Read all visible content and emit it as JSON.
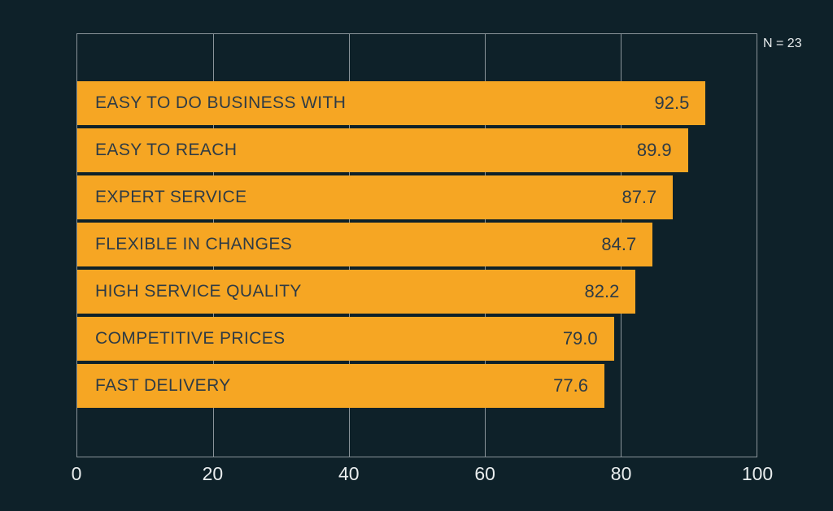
{
  "chart_data": {
    "type": "bar",
    "orientation": "horizontal",
    "categories": [
      "EASY TO DO BUSINESS WITH",
      "EASY TO REACH",
      "EXPERT SERVICE",
      "FLEXIBLE IN CHANGES",
      "HIGH SERVICE QUALITY",
      "COMPETITIVE PRICES",
      "FAST DELIVERY"
    ],
    "values": [
      92.5,
      89.9,
      87.7,
      84.7,
      82.2,
      79.0,
      77.6
    ],
    "value_decimals": 1,
    "xlim": [
      0,
      100
    ],
    "xticks": [
      0,
      20,
      40,
      60,
      80,
      100
    ],
    "annotation": "N = 23",
    "grid": "vertical",
    "legend": "none",
    "title": "",
    "xlabel": "",
    "ylabel": "",
    "colors": {
      "background": "#0e2129",
      "bar": "#f6a623",
      "bar_text": "#2e3b45",
      "grid_line": "#8a949a",
      "tick_text": "#e9edee",
      "annotation_text": "#e9edee"
    }
  }
}
